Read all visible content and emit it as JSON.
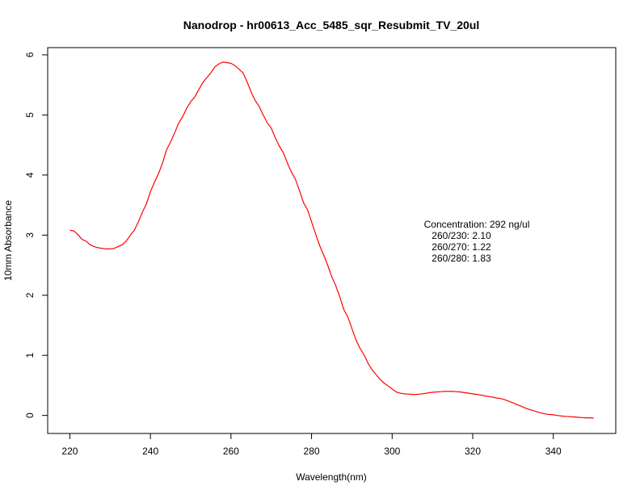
{
  "chart_data": {
    "type": "line",
    "title": "Nanodrop - hr00613_Acc_5485_sqr_Resubmit_TV_20ul",
    "xlabel": "Wavelength(nm)",
    "ylabel": "10mm Absorbance",
    "xlim": [
      214.5,
      355.5
    ],
    "ylim": [
      -0.3,
      6.12
    ],
    "x_ticks": [
      220,
      240,
      260,
      280,
      300,
      320,
      340
    ],
    "y_ticks": [
      0,
      1,
      2,
      3,
      4,
      5,
      6
    ],
    "grid": false,
    "line_color": "#ff0000",
    "series": [
      {
        "x": [
          220,
          221,
          222,
          223,
          224,
          225,
          226,
          227,
          228,
          229,
          230,
          231,
          232,
          233,
          234,
          235,
          236,
          237,
          238,
          239,
          240,
          241,
          242,
          243,
          244,
          245,
          246,
          247,
          248,
          249,
          250,
          251,
          252,
          253,
          254,
          255,
          256,
          257,
          258,
          259,
          260,
          261,
          262,
          263,
          264,
          265,
          266,
          267,
          268,
          269,
          270,
          271,
          272,
          273,
          274,
          275,
          276,
          277,
          278,
          279,
          280,
          281,
          282,
          283,
          284,
          285,
          286,
          287,
          288,
          289,
          290,
          291,
          292,
          293,
          294,
          295,
          296,
          297,
          298,
          299,
          300,
          301,
          302,
          303,
          304,
          305,
          306,
          307,
          308,
          309,
          310,
          311,
          312,
          313,
          314,
          315,
          316,
          317,
          318,
          319,
          320,
          321,
          322,
          323,
          324,
          325,
          326,
          327,
          328,
          329,
          330,
          331,
          332,
          333,
          334,
          335,
          336,
          337,
          338,
          339,
          340,
          341,
          342,
          343,
          344,
          345,
          346,
          347,
          348,
          349,
          350
        ],
        "y": [
          3.08,
          3.07,
          3.01,
          2.93,
          2.9,
          2.84,
          2.81,
          2.79,
          2.78,
          2.77,
          2.77,
          2.78,
          2.81,
          2.84,
          2.9,
          3.0,
          3.08,
          3.22,
          3.38,
          3.52,
          3.72,
          3.88,
          4.02,
          4.2,
          4.42,
          4.55,
          4.7,
          4.86,
          4.97,
          5.11,
          5.22,
          5.3,
          5.42,
          5.54,
          5.62,
          5.7,
          5.8,
          5.85,
          5.88,
          5.87,
          5.86,
          5.82,
          5.76,
          5.7,
          5.55,
          5.38,
          5.24,
          5.14,
          5.0,
          4.87,
          4.78,
          4.62,
          4.48,
          4.37,
          4.2,
          4.05,
          3.93,
          3.74,
          3.54,
          3.42,
          3.22,
          3.02,
          2.83,
          2.67,
          2.5,
          2.31,
          2.16,
          1.97,
          1.76,
          1.64,
          1.45,
          1.26,
          1.12,
          1.01,
          0.87,
          0.76,
          0.68,
          0.6,
          0.54,
          0.49,
          0.44,
          0.39,
          0.37,
          0.36,
          0.355,
          0.35,
          0.35,
          0.355,
          0.365,
          0.375,
          0.385,
          0.39,
          0.395,
          0.4,
          0.4,
          0.4,
          0.395,
          0.39,
          0.38,
          0.37,
          0.36,
          0.35,
          0.34,
          0.325,
          0.315,
          0.305,
          0.29,
          0.28,
          0.26,
          0.235,
          0.21,
          0.18,
          0.155,
          0.125,
          0.1,
          0.08,
          0.06,
          0.04,
          0.025,
          0.015,
          0.01,
          0.0,
          -0.01,
          -0.015,
          -0.02,
          -0.025,
          -0.03,
          -0.035,
          -0.04,
          -0.04,
          -0.045
        ]
      }
    ],
    "annotation": {
      "lines": [
        "Concentration: 292 ng/ul",
        "260/230: 2.10",
        "260/270: 1.22",
        "260/280: 1.83"
      ]
    }
  }
}
